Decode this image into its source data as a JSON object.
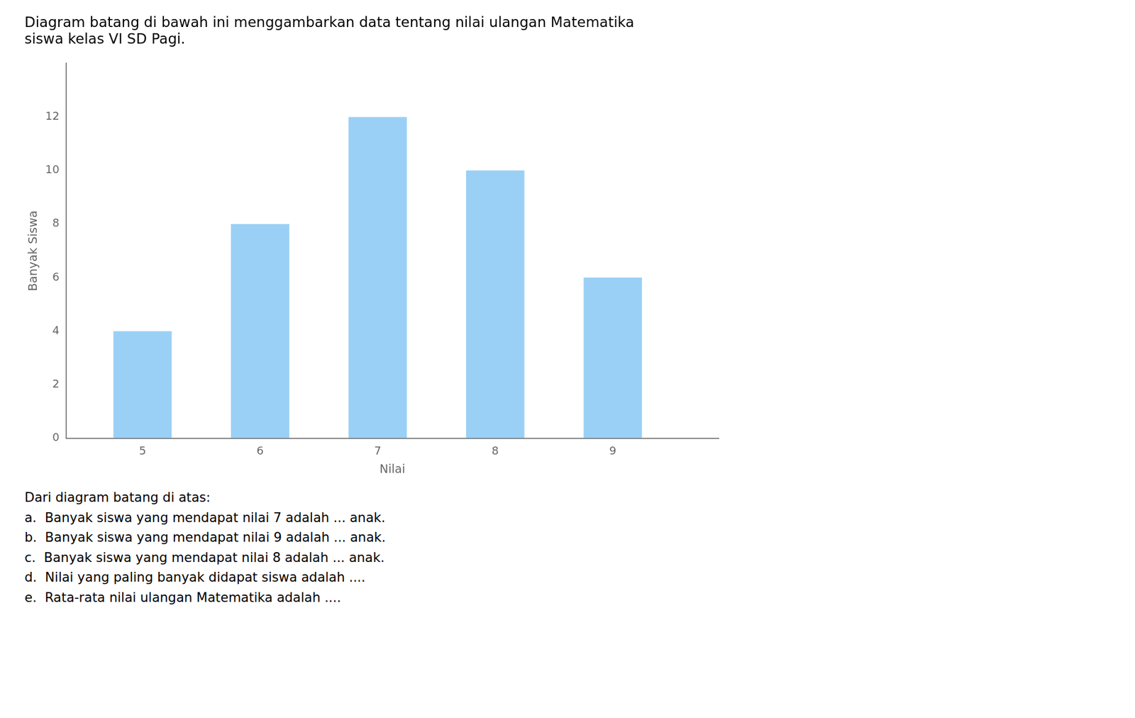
{
  "chart_data": {
    "type": "bar",
    "title": [
      "Diagram batang di bawah ini menggambarkan data tentang nilai ulangan Matematika",
      "siswa kelas VI SD Pagi."
    ],
    "x": [
      5,
      6,
      7,
      8,
      9
    ],
    "values": [
      4,
      8,
      12,
      10,
      6
    ],
    "x_label": "Nilai",
    "y_label": "Banyak Siswa",
    "xlim": [
      4.35,
      9.9
    ],
    "xticks": [
      5,
      6,
      7,
      8,
      9
    ],
    "ylim": [
      0,
      14
    ],
    "yticks": [
      0,
      2,
      4,
      6,
      8,
      10,
      12
    ],
    "grid": false,
    "annotations": [
      "Dari diagram batang di atas:",
      "a.  Banyak siswa yang mendapat nilai 7 adalah ... anak.",
      "b.  Banyak siswa yang mendapat nilai 9 adalah ... anak.",
      "c.  Banyak siswa yang mendapat nilai 8 adalah ... anak.",
      "d.  Nilai yang paling banyak didapat siswa adalah ....",
      "e.  Rata-rata nilai ulangan Matematika adalah ...."
    ]
  }
}
